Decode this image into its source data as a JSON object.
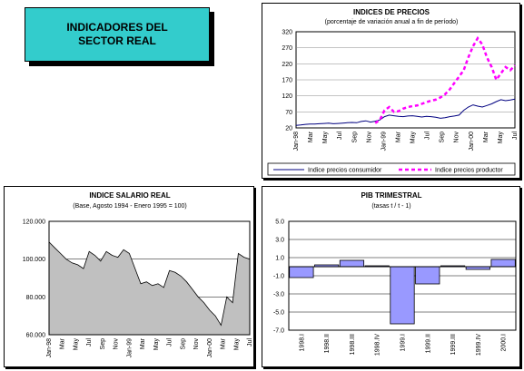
{
  "header": {
    "line1": "INDICADORES DEL",
    "line2": "SECTOR REAL"
  },
  "chart_data": [
    {
      "id": "precios",
      "type": "line",
      "title": "INDICES DE PRECIOS",
      "subtitle": "(porcentaje de variación anual a fin de período)",
      "xlabels": [
        "Jan-98",
        "Mar",
        "May",
        "Jul",
        "Sep",
        "Nov",
        "Jan-99",
        "Mar",
        "May",
        "Jul",
        "Sep",
        "Nov",
        "Jan-00",
        "Mar",
        "May",
        "Jul"
      ],
      "ylim": [
        20,
        320
      ],
      "yticks": [
        20,
        70,
        120,
        170,
        220,
        270,
        320
      ],
      "series": [
        {
          "name": "Indice precios consumidor",
          "color": "#000080",
          "style": "solid",
          "values": [
            28,
            29,
            31,
            32,
            32,
            33,
            34,
            35,
            33,
            34,
            35,
            36,
            37,
            36,
            40,
            42,
            38,
            41,
            45,
            55,
            60,
            58,
            56,
            55,
            57,
            58,
            56,
            54,
            56,
            55,
            53,
            50,
            52,
            55,
            57,
            60,
            75,
            85,
            92,
            88,
            85,
            90,
            95,
            102,
            108,
            105,
            107,
            110
          ]
        },
        {
          "name": "Indice precios productor",
          "color": "#ff00ff",
          "style": "dashed",
          "values": [
            null,
            null,
            null,
            null,
            null,
            null,
            null,
            null,
            null,
            null,
            null,
            null,
            null,
            null,
            null,
            null,
            null,
            35,
            45,
            75,
            85,
            70,
            72,
            80,
            85,
            88,
            90,
            95,
            100,
            105,
            108,
            115,
            125,
            140,
            160,
            180,
            200,
            240,
            275,
            300,
            280,
            240,
            210,
            170,
            190,
            210,
            200,
            215
          ]
        }
      ]
    },
    {
      "id": "salario",
      "type": "area",
      "title": "INDICE SALARIO REAL",
      "subtitle": "(Base, Agosto 1994 - Enero 1995 = 100)",
      "xlabels": [
        "Jan-98",
        "Mar",
        "May",
        "Jul",
        "Sep",
        "Nov",
        "Jan-99",
        "Mar",
        "May",
        "Jul",
        "Sep",
        "Nov",
        "Jan-00",
        "Mar",
        "May",
        "Jul"
      ],
      "ylim": [
        60000,
        120000
      ],
      "yticks": [
        60000,
        80000,
        100000,
        120000
      ],
      "ytick_labels": [
        "60.000",
        "80.000",
        "100.000",
        "120.000"
      ],
      "series": [
        {
          "name": "",
          "color": "#c0c0c0",
          "values": [
            109000,
            106000,
            103000,
            100000,
            98000,
            97000,
            95000,
            104000,
            102000,
            99000,
            104000,
            102000,
            101000,
            105000,
            103000,
            95000,
            87000,
            88000,
            86000,
            87000,
            85000,
            94000,
            93000,
            91000,
            88000,
            84000,
            80000,
            77000,
            73000,
            70000,
            65000,
            80000,
            77000,
            103000,
            101000,
            100000
          ]
        }
      ]
    },
    {
      "id": "pib",
      "type": "bar",
      "title": "PIB TRIMESTRAL",
      "subtitle": "(tasas t / t - 1)",
      "categories": [
        "1998.I",
        "1998.II",
        "1998.III",
        "1998.IV",
        "1999.I",
        "1999.II",
        "1999.III",
        "1999.IV",
        "2000.I"
      ],
      "values": [
        -1.2,
        0.2,
        0.7,
        0.1,
        -6.3,
        -1.9,
        0.1,
        -0.3,
        0.8
      ],
      "ylim": [
        -7.0,
        5.0
      ],
      "yticks": [
        5.0,
        3.0,
        1.0,
        -1.0,
        -3.0,
        -5.0,
        -7.0
      ],
      "ytick_labels": [
        "5.0",
        "3.0",
        "1.0",
        "-1.0",
        "-3.0",
        "-5.0",
        "-7.0"
      ],
      "color": "#9999ff"
    }
  ]
}
